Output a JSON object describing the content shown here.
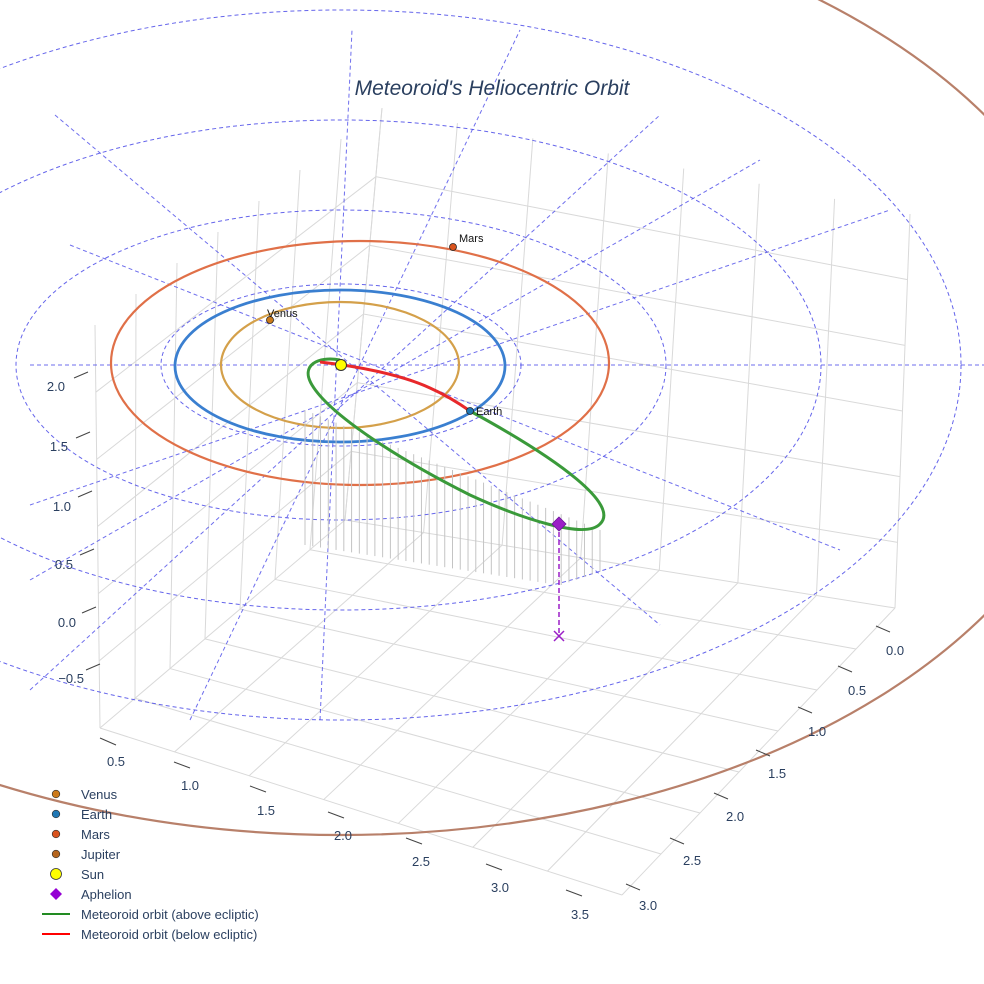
{
  "chart_data": {
    "type": "scatter3d",
    "title": "Meteoroid's Heliocentric Orbit",
    "axes": {
      "x_ticks": [
        "0.5",
        "1.0",
        "1.5",
        "2.0",
        "2.5",
        "3.0",
        "3.5"
      ],
      "y_ticks": [
        "0.0",
        "0.5",
        "1.0",
        "1.5",
        "2.0",
        "2.5",
        "3.0"
      ],
      "z_ticks": [
        "−0.5",
        "0.0",
        "0.5",
        "1.0",
        "1.5",
        "2.0"
      ]
    },
    "planet_orbits": [
      {
        "name": "Venus",
        "a_au": 0.72
      },
      {
        "name": "Earth",
        "a_au": 1.0
      },
      {
        "name": "Mars",
        "a_au": 1.52
      },
      {
        "name": "Jupiter",
        "a_au": 5.2
      }
    ],
    "planets": [
      {
        "name": "Venus",
        "label": "Venus"
      },
      {
        "name": "Earth",
        "label": "Earth"
      },
      {
        "name": "Mars",
        "label": "Mars"
      }
    ],
    "meteoroid": {
      "segments": [
        "above ecliptic",
        "below ecliptic"
      ],
      "aphelion_marker": "diamond",
      "aphelion_projection": "x"
    },
    "legend": [
      {
        "label": "Venus",
        "symbol": "dot",
        "color": "#cc7a1a"
      },
      {
        "label": "Earth",
        "symbol": "dot",
        "color": "#1f77b4"
      },
      {
        "label": "Mars",
        "symbol": "dot",
        "color": "#d9531e"
      },
      {
        "label": "Jupiter",
        "symbol": "dot",
        "color": "#b5651d"
      },
      {
        "label": "Sun",
        "symbol": "circle",
        "color": "#ffff00"
      },
      {
        "label": "Aphelion",
        "symbol": "diamond",
        "color": "#9400d3"
      },
      {
        "label": "Meteoroid orbit (above ecliptic)",
        "symbol": "line",
        "color": "#228b22"
      },
      {
        "label": "Meteoroid orbit (below ecliptic)",
        "symbol": "line",
        "color": "#ff0000"
      }
    ]
  },
  "colors": {
    "venus_orbit": "#d4a04a",
    "earth_orbit": "#3a7fd0",
    "mars_orbit": "#e07048",
    "jupiter_orbit": "#b8806a",
    "polar_grid": "#4a4ae8",
    "above": "#3a9a3a",
    "below": "#e8282b",
    "aphelion": "#9b1fc7"
  }
}
